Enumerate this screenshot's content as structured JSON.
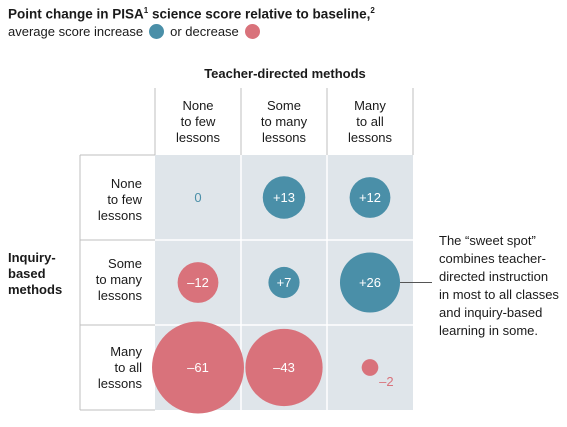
{
  "title": {
    "text": "Point change in PISA",
    "sup1": "1",
    "text2": " science score relative to baseline,",
    "sup2": "2"
  },
  "legend": {
    "increase_label": "average score increase",
    "decrease_label": "or decrease"
  },
  "colors": {
    "increase": "#4a8fa8",
    "decrease": "#d9727b",
    "grid": "#dfe5ea",
    "zero": "#4a8fa8"
  },
  "axes": {
    "columns_title": "Teacher-directed methods",
    "rows_title": [
      "Inquiry-",
      "based",
      "methods"
    ],
    "columns": [
      [
        "None",
        "to few",
        "lessons"
      ],
      [
        "Some",
        "to many",
        "lessons"
      ],
      [
        "Many",
        "to all",
        "lessons"
      ]
    ],
    "rows": [
      [
        "None",
        "to few",
        "lessons"
      ],
      [
        "Some",
        "to many",
        "lessons"
      ],
      [
        "Many",
        "to all",
        "lessons"
      ]
    ]
  },
  "annotation": [
    "The “sweet spot”",
    "combines teacher-",
    "directed instruction",
    "in most to all classes",
    "and inquiry-based",
    "learning in some."
  ],
  "chart_data": {
    "type": "bubble-matrix",
    "title": "Point change in PISA science score relative to baseline",
    "x_categories": [
      "None to few lessons",
      "Some to many lessons",
      "Many to all lessons"
    ],
    "y_categories": [
      "None to few lessons",
      "Some to many lessons",
      "Many to all lessons"
    ],
    "xlabel": "Teacher-directed methods",
    "ylabel": "Inquiry-based methods",
    "cells": [
      {
        "row": 0,
        "col": 0,
        "value": 0,
        "label": "0"
      },
      {
        "row": 0,
        "col": 1,
        "value": 13,
        "label": "+13"
      },
      {
        "row": 0,
        "col": 2,
        "value": 12,
        "label": "+12"
      },
      {
        "row": 1,
        "col": 0,
        "value": -12,
        "label": "–12"
      },
      {
        "row": 1,
        "col": 1,
        "value": 7,
        "label": "+7"
      },
      {
        "row": 1,
        "col": 2,
        "value": 26,
        "label": "+26"
      },
      {
        "row": 2,
        "col": 0,
        "value": -61,
        "label": "–61"
      },
      {
        "row": 2,
        "col": 1,
        "value": -43,
        "label": "–43"
      },
      {
        "row": 2,
        "col": 2,
        "value": -2,
        "label": "–2"
      }
    ]
  }
}
